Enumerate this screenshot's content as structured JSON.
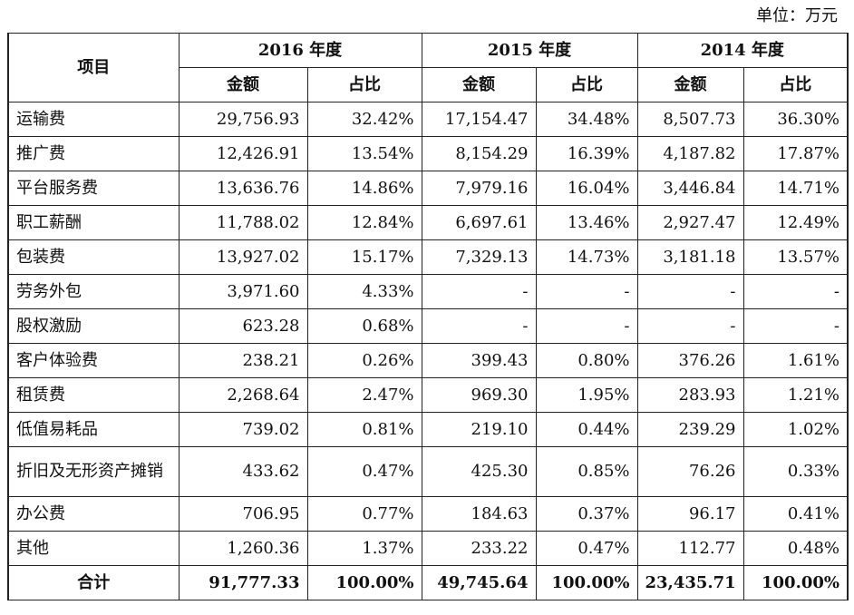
{
  "unit_note": "单位：万元",
  "header": {
    "item_label": "项目",
    "years": [
      "2016 年度",
      "2015 年度",
      "2014 年度"
    ],
    "amount_label": "金额",
    "ratio_label": "占比"
  },
  "rows": [
    {
      "label": "运输费",
      "cells": [
        "29,756.93",
        "32.42%",
        "17,154.47",
        "34.48%",
        "8,507.73",
        "36.30%"
      ]
    },
    {
      "label": "推广费",
      "cells": [
        "12,426.91",
        "13.54%",
        "8,154.29",
        "16.39%",
        "4,187.82",
        "17.87%"
      ]
    },
    {
      "label": "平台服务费",
      "cells": [
        "13,636.76",
        "14.86%",
        "7,979.16",
        "16.04%",
        "3,446.84",
        "14.71%"
      ]
    },
    {
      "label": "职工薪酬",
      "cells": [
        "11,788.02",
        "12.84%",
        "6,697.61",
        "13.46%",
        "2,927.47",
        "12.49%"
      ]
    },
    {
      "label": "包装费",
      "cells": [
        "13,927.02",
        "15.17%",
        "7,329.13",
        "14.73%",
        "3,181.18",
        "13.57%"
      ]
    },
    {
      "label": "劳务外包",
      "cells": [
        "3,971.60",
        "4.33%",
        "-",
        "-",
        "-",
        "-"
      ]
    },
    {
      "label": "股权激励",
      "cells": [
        "623.28",
        "0.68%",
        "-",
        "-",
        "-",
        "-"
      ]
    },
    {
      "label": "客户体验费",
      "cells": [
        "238.21",
        "0.26%",
        "399.43",
        "0.80%",
        "376.26",
        "1.61%"
      ]
    },
    {
      "label": "租赁费",
      "cells": [
        "2,268.64",
        "2.47%",
        "969.30",
        "1.95%",
        "283.93",
        "1.21%"
      ]
    },
    {
      "label": "低值易耗品",
      "cells": [
        "739.02",
        "0.81%",
        "219.10",
        "0.44%",
        "239.29",
        "1.02%"
      ]
    },
    {
      "label": "折旧及无形资产摊销",
      "cells": [
        "433.62",
        "0.47%",
        "425.30",
        "0.85%",
        "76.26",
        "0.33%"
      ]
    },
    {
      "label": "办公费",
      "cells": [
        "706.95",
        "0.77%",
        "184.63",
        "0.37%",
        "96.17",
        "0.41%"
      ]
    },
    {
      "label": "其他",
      "cells": [
        "1,260.36",
        "1.37%",
        "233.22",
        "0.47%",
        "112.77",
        "0.48%"
      ]
    }
  ],
  "total": {
    "label": "合计",
    "cells": [
      "91,777.33",
      "100.00%",
      "49,745.64",
      "100.00%",
      "23,435.71",
      "100.00%"
    ]
  }
}
